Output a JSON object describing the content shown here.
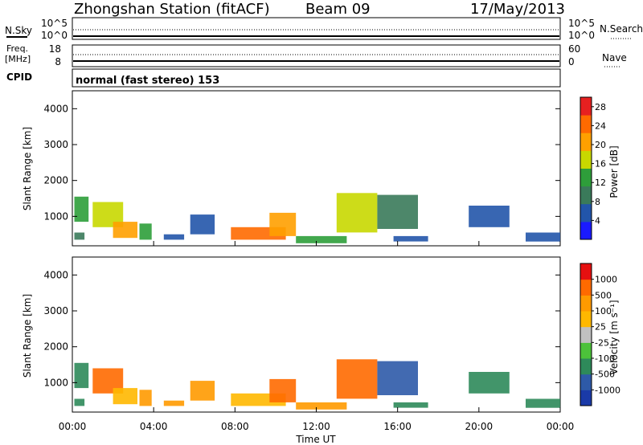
{
  "header": {
    "station": "Zhongshan Station (fitACF)",
    "beam": "Beam 09",
    "date": "17/May/2013"
  },
  "panels": {
    "nsky": {
      "left_label": "N.Sky",
      "right_label": "N.Search",
      "left_ticks": [
        "10^5",
        "10^0"
      ],
      "right_ticks": [
        "10^5",
        "10^0"
      ]
    },
    "freq": {
      "left_label_1": "Freq.",
      "left_label_2": "[MHz]",
      "right_label": "Nave",
      "left_ticks": [
        "18",
        "8"
      ],
      "right_ticks": [
        "60",
        "0"
      ]
    },
    "cpid": {
      "label": "CPID",
      "text": "normal (fast stereo) 153"
    }
  },
  "colors": {
    "power": [
      "#1a1aff",
      "#2255aa",
      "#3a7a5a",
      "#2e9e3a",
      "#c8d800",
      "#ffa000",
      "#ff6a00",
      "#e62020"
    ],
    "velocity": [
      "#e61010",
      "#ff6a00",
      "#ff9a00",
      "#ffb800",
      "#c0c0c0",
      "#4cc23a",
      "#2e8a5a",
      "#2e5aa8",
      "#1a3aa8"
    ]
  },
  "chart_data": [
    {
      "type": "heatmap",
      "title": "",
      "xlabel": "",
      "ylabel": "Slant Range [km]",
      "xlim": [
        0,
        24
      ],
      "ylim": [
        180,
        4500
      ],
      "yticks": [
        "1000",
        "2000",
        "3000",
        "4000"
      ],
      "colorbar": {
        "label": "Power [dB]",
        "ticks": [
          "4",
          "8",
          "12",
          "16",
          "20",
          "24",
          "28"
        ],
        "range": [
          0,
          30
        ]
      },
      "blobs": [
        {
          "t0": 0.1,
          "t1": 0.8,
          "r0": 850,
          "r1": 1550,
          "v": 12
        },
        {
          "t0": 0.1,
          "t1": 0.6,
          "r0": 350,
          "r1": 550,
          "v": 10
        },
        {
          "t0": 1.0,
          "t1": 2.5,
          "r0": 700,
          "r1": 1400,
          "v": 18
        },
        {
          "t0": 2.0,
          "t1": 3.2,
          "r0": 400,
          "r1": 850,
          "v": 22
        },
        {
          "t0": 3.3,
          "t1": 3.9,
          "r0": 350,
          "r1": 800,
          "v": 14
        },
        {
          "t0": 4.5,
          "t1": 5.5,
          "r0": 350,
          "r1": 500,
          "v": 6
        },
        {
          "t0": 5.8,
          "t1": 7.0,
          "r0": 500,
          "r1": 1050,
          "v": 6
        },
        {
          "t0": 7.8,
          "t1": 10.5,
          "r0": 350,
          "r1": 700,
          "v": 24
        },
        {
          "t0": 9.7,
          "t1": 11.0,
          "r0": 450,
          "r1": 1100,
          "v": 20
        },
        {
          "t0": 11.0,
          "t1": 13.5,
          "r0": 250,
          "r1": 450,
          "v": 12
        },
        {
          "t0": 13.0,
          "t1": 15.0,
          "r0": 550,
          "r1": 1650,
          "v": 16
        },
        {
          "t0": 15.0,
          "t1": 17.0,
          "r0": 650,
          "r1": 1600,
          "v": 10
        },
        {
          "t0": 15.8,
          "t1": 17.5,
          "r0": 300,
          "r1": 450,
          "v": 4
        },
        {
          "t0": 19.5,
          "t1": 21.5,
          "r0": 700,
          "r1": 1300,
          "v": 4
        },
        {
          "t0": 22.3,
          "t1": 24.0,
          "r0": 300,
          "r1": 550,
          "v": 4
        }
      ]
    },
    {
      "type": "heatmap",
      "title": "",
      "xlabel": "Time UT",
      "ylabel": "Slant Range [km]",
      "xlim": [
        0,
        24
      ],
      "ylim": [
        180,
        4500
      ],
      "xticks": [
        "00:00",
        "04:00",
        "08:00",
        "12:00",
        "16:00",
        "20:00",
        "00:00"
      ],
      "yticks": [
        "1000",
        "2000",
        "3000",
        "4000"
      ],
      "colorbar": {
        "label": "Velocity [m s⁻¹]",
        "ticks": [
          "-1000",
          "-500",
          "-100",
          "-25",
          "25",
          "100",
          "500",
          "1000"
        ]
      },
      "blobs": [
        {
          "t0": 0.1,
          "t1": 0.8,
          "r0": 850,
          "r1": 1550,
          "v": 6
        },
        {
          "t0": 0.1,
          "t1": 0.6,
          "r0": 350,
          "r1": 550,
          "v": 6
        },
        {
          "t0": 1.0,
          "t1": 2.5,
          "r0": 700,
          "r1": 1400,
          "v": 1
        },
        {
          "t0": 2.0,
          "t1": 3.2,
          "r0": 400,
          "r1": 850,
          "v": 3
        },
        {
          "t0": 3.3,
          "t1": 3.9,
          "r0": 350,
          "r1": 800,
          "v": 2
        },
        {
          "t0": 4.5,
          "t1": 5.5,
          "r0": 350,
          "r1": 500,
          "v": 2
        },
        {
          "t0": 5.8,
          "t1": 7.0,
          "r0": 500,
          "r1": 1050,
          "v": 2
        },
        {
          "t0": 7.8,
          "t1": 10.5,
          "r0": 350,
          "r1": 700,
          "v": 3
        },
        {
          "t0": 9.7,
          "t1": 11.0,
          "r0": 450,
          "r1": 1100,
          "v": 1
        },
        {
          "t0": 11.0,
          "t1": 13.5,
          "r0": 250,
          "r1": 450,
          "v": 2
        },
        {
          "t0": 13.0,
          "t1": 15.0,
          "r0": 550,
          "r1": 1650,
          "v": 1
        },
        {
          "t0": 15.0,
          "t1": 17.0,
          "r0": 650,
          "r1": 1600,
          "v": 7
        },
        {
          "t0": 15.8,
          "t1": 17.5,
          "r0": 300,
          "r1": 450,
          "v": 6
        },
        {
          "t0": 19.5,
          "t1": 21.5,
          "r0": 700,
          "r1": 1300,
          "v": 6
        },
        {
          "t0": 22.3,
          "t1": 24.0,
          "r0": 300,
          "r1": 550,
          "v": 6
        }
      ]
    }
  ]
}
